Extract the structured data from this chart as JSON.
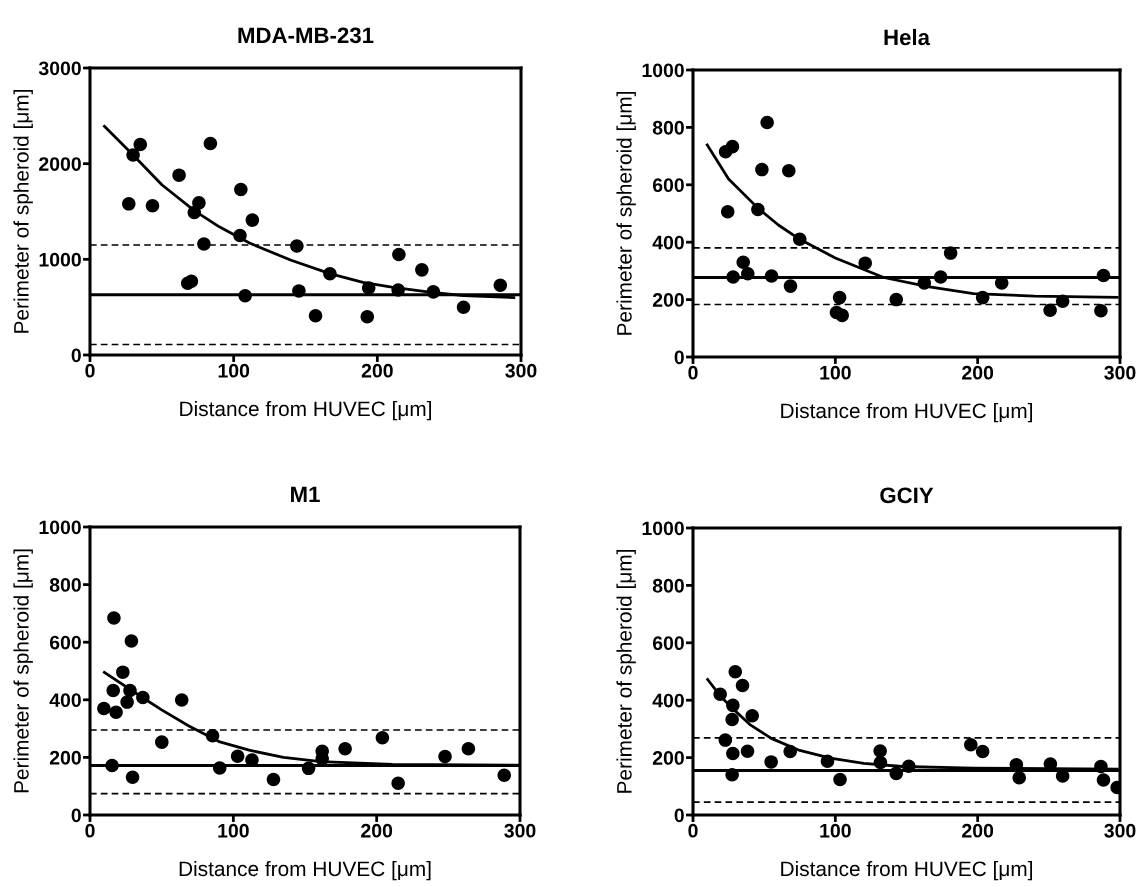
{
  "chart_data": [
    {
      "type": "scatter",
      "title": "MDA-MB-231",
      "xlabel": "Distance from HUVEC [μm]",
      "ylabel": "Perimeter of spheroid [μm]",
      "xlim": [
        0,
        300
      ],
      "xticks": [
        0,
        100,
        200,
        300
      ],
      "ylim": [
        0,
        3000
      ],
      "yticks": [
        0,
        1000,
        2000,
        3000
      ],
      "grid": false,
      "series": [
        {
          "marker": "circle",
          "color": "#000000",
          "x": [
            27,
            30,
            35,
            43.5,
            62,
            68,
            70.6,
            72.6,
            75.8,
            79.3,
            83.8,
            105,
            104.4,
            108,
            113,
            144,
            145.4,
            157,
            167,
            193,
            194,
            215,
            214.5,
            231,
            239,
            260,
            285.6
          ],
          "values": [
            1580,
            2090,
            2200,
            1560,
            1880,
            750,
            770,
            1490,
            1590,
            1160,
            2210,
            1730,
            1250,
            620,
            1410,
            1140,
            670,
            410,
            850,
            400,
            700,
            1050,
            680,
            890,
            660,
            500,
            730
          ]
        },
        {
          "type": "line",
          "marker": "none",
          "line_style": "solid",
          "color": "#000000",
          "x": [
            10,
            30,
            50,
            72.6,
            90,
            111,
            140,
            167,
            190,
            210,
            235,
            260,
            295
          ],
          "values": [
            2390,
            2090,
            1780,
            1510,
            1340,
            1170,
            990,
            850,
            760,
            710,
            660,
            620,
            600
          ]
        }
      ],
      "ref_lines": [
        {
          "axis": "y",
          "value": 630,
          "line_style": "solid",
          "color": "#000000"
        },
        {
          "axis": "y",
          "value": 1150,
          "line_style": "dashed",
          "color": "#000000"
        },
        {
          "axis": "y",
          "value": 110,
          "line_style": "dashed",
          "color": "#000000"
        }
      ]
    },
    {
      "type": "scatter",
      "title": "Hela",
      "xlabel": "Distance from HUVEC [μm]",
      "ylabel": "Perimeter of spheroid [μm]",
      "xlim": [
        0,
        300
      ],
      "xticks": [
        0,
        100,
        200,
        300
      ],
      "ylim": [
        0,
        1000
      ],
      "yticks": [
        0,
        200,
        400,
        600,
        800,
        1000
      ],
      "grid": false,
      "series": [
        {
          "marker": "circle",
          "color": "#000000",
          "x": [
            22.9,
            27.7,
            24.4,
            52.1,
            48.4,
            67.3,
            45.6,
            75,
            35.3,
            38.5,
            28.2,
            55.2,
            68.5,
            103,
            100.8,
            104.8,
            121,
            142.8,
            162.5,
            174,
            181,
            203.5,
            216.9,
            250.9,
            259.7,
            286.6,
            288.4
          ],
          "values": [
            715,
            733,
            506,
            817,
            653,
            649,
            514,
            410,
            330,
            290,
            279,
            282,
            247,
            207,
            155,
            145,
            327,
            200,
            258,
            279,
            362,
            207,
            258,
            163,
            194,
            161,
            284
          ]
        },
        {
          "type": "line",
          "marker": "none",
          "line_style": "solid",
          "color": "#000000",
          "x": [
            10,
            25,
            46,
            60,
            75,
            100,
            134,
            165,
            197,
            240,
            298
          ],
          "values": [
            739,
            620,
            517,
            460,
            410,
            345,
            277,
            245,
            221,
            212,
            208
          ]
        }
      ],
      "ref_lines": [
        {
          "axis": "y",
          "value": 277,
          "line_style": "solid",
          "color": "#000000"
        },
        {
          "axis": "y",
          "value": 380,
          "line_style": "dashed",
          "color": "#000000"
        },
        {
          "axis": "y",
          "value": 183,
          "line_style": "dashed",
          "color": "#000000"
        }
      ]
    },
    {
      "type": "scatter",
      "title": "M1",
      "xlabel": "Distance from HUVEC [μm]",
      "ylabel": "Perimeter of spheroid [μm]",
      "xlim": [
        0,
        300
      ],
      "xticks": [
        0,
        100,
        200,
        300
      ],
      "ylim": [
        0,
        1000
      ],
      "yticks": [
        0,
        200,
        400,
        600,
        800,
        1000
      ],
      "grid": false,
      "series": [
        {
          "marker": "circle",
          "color": "#000000",
          "x": [
            9.7,
            16.7,
            16.2,
            18.2,
            22.9,
            15.4,
            25.9,
            27.9,
            28.9,
            29.7,
            36.9,
            50.1,
            64,
            85.5,
            90.5,
            103,
            113,
            128,
            152.5,
            162,
            162,
            178,
            204,
            215,
            247.7,
            264,
            289
          ],
          "values": [
            370,
            684,
            432,
            357,
            496,
            172,
            392,
            432,
            604,
            131,
            408,
            253,
            399,
            275,
            163,
            204,
            191,
            123,
            162,
            221,
            195,
            230,
            268,
            110,
            203,
            230,
            138
          ]
        },
        {
          "type": "line",
          "marker": "none",
          "line_style": "solid",
          "color": "#000000",
          "x": [
            10,
            36.6,
            50,
            69,
            90,
            111,
            135,
            161,
            211,
            298
          ],
          "values": [
            495,
            408,
            365,
            309,
            255,
            225,
            200,
            185,
            176,
            173
          ]
        }
      ],
      "ref_lines": [
        {
          "axis": "y",
          "value": 172,
          "line_style": "solid",
          "color": "#000000"
        },
        {
          "axis": "y",
          "value": 295,
          "line_style": "dashed",
          "color": "#000000"
        },
        {
          "axis": "y",
          "value": 74,
          "line_style": "dashed",
          "color": "#000000"
        }
      ]
    },
    {
      "type": "scatter",
      "title": "GCIY",
      "xlabel": "Distance from HUVEC [μm]",
      "ylabel": "Perimeter of spheroid [μm]",
      "xlim": [
        0,
        300
      ],
      "xticks": [
        0,
        100,
        200,
        300
      ],
      "ylim": [
        0,
        1000
      ],
      "yticks": [
        0,
        200,
        400,
        600,
        800,
        1000
      ],
      "grid": false,
      "series": [
        {
          "marker": "circle",
          "color": "#000000",
          "x": [
            19.1,
            29.7,
            34.8,
            28,
            27.5,
            41.6,
            22.7,
            28,
            38.3,
            27.5,
            54.9,
            68.3,
            94.5,
            103.3,
            131.5,
            131.7,
            142.8,
            151.6,
            195.2,
            203.5,
            227.2,
            229.2,
            251.1,
            259.7,
            286.6,
            288.4,
            298
          ],
          "values": [
            421,
            499,
            451,
            382,
            333,
            346,
            261,
            214,
            222,
            140,
            185,
            221,
            187,
            124,
            223,
            183,
            145,
            170,
            245,
            221,
            175,
            130,
            178,
            136,
            169,
            122,
            96
          ]
        },
        {
          "type": "line",
          "marker": "none",
          "line_style": "solid",
          "color": "#000000",
          "x": [
            10.3,
            20,
            28.5,
            40,
            55,
            75,
            96.5,
            120,
            147,
            197,
            298
          ],
          "values": [
            472,
            410,
            368,
            315,
            267,
            225,
            198,
            180,
            169,
            163,
            160
          ]
        }
      ],
      "ref_lines": [
        {
          "axis": "y",
          "value": 155,
          "line_style": "solid",
          "color": "#000000"
        },
        {
          "axis": "y",
          "value": 269,
          "line_style": "dashed",
          "color": "#000000"
        },
        {
          "axis": "y",
          "value": 45,
          "line_style": "dashed",
          "color": "#000000"
        }
      ]
    }
  ]
}
